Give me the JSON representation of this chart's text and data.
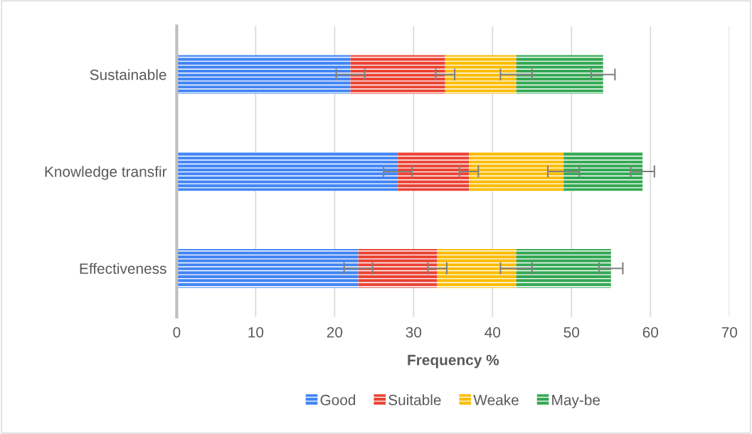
{
  "chart_data": {
    "type": "bar",
    "orientation": "horizontal",
    "stacked": true,
    "xlabel": "Frequency %",
    "categories": [
      "Sustainable",
      "Knowledge transfir",
      "Effectiveness"
    ],
    "series": [
      {
        "name": "Good",
        "color": "#4285f4",
        "values": [
          22,
          28,
          23
        ],
        "errors": [
          1.8,
          1.8,
          1.8
        ]
      },
      {
        "name": "Suitable",
        "color": "#ea4335",
        "values": [
          12,
          9,
          10
        ],
        "errors": [
          1.2,
          1.2,
          1.2
        ]
      },
      {
        "name": "Weake",
        "color": "#fbbc04",
        "values": [
          9,
          12,
          10
        ],
        "errors": [
          2,
          2,
          2
        ]
      },
      {
        "name": "May-be",
        "color": "#34a853",
        "values": [
          11,
          10,
          12
        ],
        "errors": [
          1.5,
          1.5,
          1.5
        ]
      }
    ],
    "xlim": [
      0,
      70
    ],
    "xticks": [
      0,
      10,
      20,
      30,
      40,
      50,
      60,
      70
    ],
    "grid": "x",
    "legend": "bottom"
  }
}
